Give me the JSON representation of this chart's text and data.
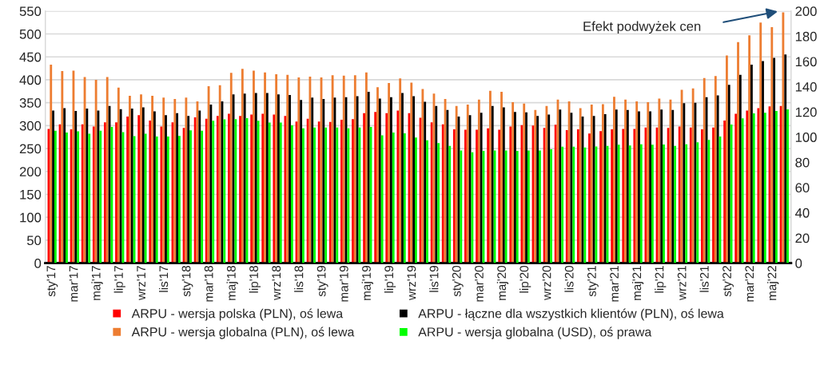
{
  "chart_data": {
    "type": "bar",
    "categories": [
      "sty'17",
      null,
      "mar'17",
      null,
      "maj'17",
      null,
      "lip'17",
      null,
      "wrz'17",
      null,
      "lis'17",
      null,
      "sty'18",
      null,
      "mar'18",
      null,
      "maj'18",
      null,
      "lip'18",
      null,
      "wrz'18",
      null,
      "lis'18",
      null,
      "sty'19",
      null,
      "mar'19",
      null,
      "maj'19",
      null,
      "lip'19",
      null,
      "wrz'19",
      null,
      "lis'19",
      null,
      "sty'20",
      null,
      "mar'20",
      null,
      "maj'20",
      null,
      "lip'20",
      null,
      "wrz'20",
      null,
      "lis'20",
      null,
      "sty'21",
      null,
      "mar'21",
      null,
      "maj'21",
      null,
      "lip'21",
      null,
      "wrz'21",
      null,
      "lis'21",
      null,
      "sty'22",
      null,
      "mar'22",
      null,
      "maj'22",
      null
    ],
    "series": [
      {
        "name": "ARPU - wersja polska (PLN), oś lewa",
        "color": "#ff0000",
        "values": [
          293,
          303,
          292,
          303,
          298,
          307,
          307,
          320,
          323,
          311,
          298,
          307,
          295,
          318,
          315,
          321,
          326,
          321,
          324,
          326,
          324,
          321,
          309,
          315,
          309,
          308,
          313,
          314,
          327,
          330,
          327,
          333,
          327,
          317,
          307,
          303,
          292,
          291,
          291,
          294,
          291,
          298,
          301,
          300,
          295,
          302,
          290,
          292,
          283,
          288,
          292,
          293,
          293,
          296,
          296,
          295,
          298,
          296,
          292,
          296,
          311,
          326,
          333,
          338,
          342,
          343
        ]
      },
      {
        "name": "ARPU - wersja globalna (PLN), oś lewa",
        "color": "#ed7d31",
        "values": [
          433,
          419,
          420,
          406,
          400,
          406,
          383,
          365,
          368,
          365,
          361,
          358,
          361,
          353,
          386,
          388,
          415,
          424,
          420,
          416,
          412,
          411,
          405,
          407,
          405,
          410,
          409,
          410,
          416,
          384,
          393,
          403,
          394,
          380,
          370,
          358,
          343,
          346,
          357,
          376,
          374,
          351,
          348,
          334,
          343,
          357,
          353,
          338,
          346,
          347,
          363,
          357,
          353,
          351,
          359,
          357,
          378,
          381,
          404,
          408,
          453,
          482,
          497,
          525,
          515,
          547
        ]
      },
      {
        "name": "ARPU - łączne dla wszystkich klientów (PLN), oś lewa",
        "color": "#000000",
        "values": [
          333,
          338,
          332,
          337,
          333,
          343,
          336,
          337,
          340,
          331,
          323,
          327,
          321,
          333,
          346,
          353,
          368,
          370,
          371,
          371,
          368,
          367,
          356,
          361,
          358,
          361,
          362,
          364,
          374,
          359,
          362,
          371,
          364,
          352,
          343,
          334,
          320,
          323,
          328,
          343,
          340,
          330,
          329,
          321,
          324,
          335,
          328,
          320,
          321,
          325,
          335,
          334,
          331,
          331,
          335,
          334,
          349,
          350,
          362,
          366,
          389,
          411,
          433,
          441,
          448,
          455
        ]
      },
      {
        "name": "ARPU - wersja globalna (USD), oś prawa",
        "color": "#00ff00",
        "axis": "y2",
        "values": [
          105,
          103.6,
          104.5,
          102.6,
          105,
          108,
          104,
          100.7,
          102.6,
          100.5,
          100.5,
          101,
          105.4,
          105,
          113,
          114,
          114.3,
          115,
          113,
          111.5,
          111.5,
          109.3,
          107,
          107.6,
          107.6,
          107.6,
          107,
          107.6,
          108,
          101.4,
          103.6,
          103,
          99.6,
          97.4,
          95.3,
          93,
          89.4,
          88,
          89,
          89.4,
          89.4,
          89,
          89.4,
          89.4,
          90.3,
          92.4,
          92.4,
          91.7,
          92.6,
          93,
          93.9,
          93.3,
          94.3,
          93.9,
          94.1,
          93,
          94.3,
          95.9,
          97.8,
          100.4,
          110,
          114.8,
          118.9,
          119.3,
          120.7,
          122
        ]
      }
    ],
    "ylim": [
      0,
      550
    ],
    "yticks": [
      0,
      50,
      100,
      150,
      200,
      250,
      300,
      350,
      400,
      450,
      500,
      550
    ],
    "y2lim": [
      0,
      200
    ],
    "y2ticks": [
      0,
      20,
      40,
      60,
      80,
      100,
      120,
      140,
      160,
      180,
      200
    ],
    "grid": "y",
    "legend": "bottom",
    "annotations": [
      "Efekt podwyżek cen"
    ]
  }
}
